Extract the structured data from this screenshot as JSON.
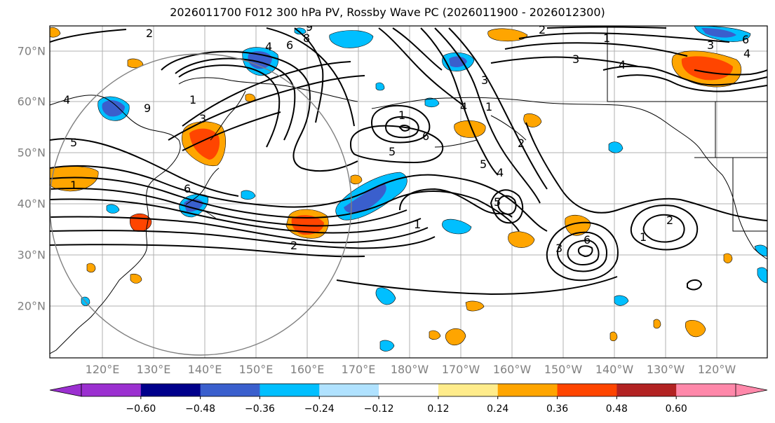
{
  "title": "2026011700 F012 300 hPa PV, Rossby Wave PC (2026011900 - 2026012300)",
  "latitude_labels": [
    "70°N",
    "60°N",
    "50°N",
    "40°N",
    "30°N",
    "20°N"
  ],
  "longitude_labels": [
    "120°E",
    "130°E",
    "140°E",
    "150°E",
    "160°E",
    "170°E",
    "180°W",
    "170°W",
    "160°W",
    "150°W",
    "140°W",
    "130°W",
    "120°W"
  ],
  "colorbar": {
    "tick_labels": [
      "−0.60",
      "−0.48",
      "−0.36",
      "−0.24",
      "−0.12",
      "0.12",
      "0.24",
      "0.36",
      "0.48",
      "0.60"
    ],
    "colors": [
      "#9b30d0",
      "#00008b",
      "#3a5fcd",
      "#00bfff",
      "#b0e2ff",
      "#ffffff",
      "#ffec8b",
      "#ffa500",
      "#ff4500",
      "#b22222",
      "#ff88aa"
    ]
  },
  "contour_labels": [
    "1",
    "2",
    "3",
    "4",
    "5",
    "6",
    "8",
    "9"
  ]
}
